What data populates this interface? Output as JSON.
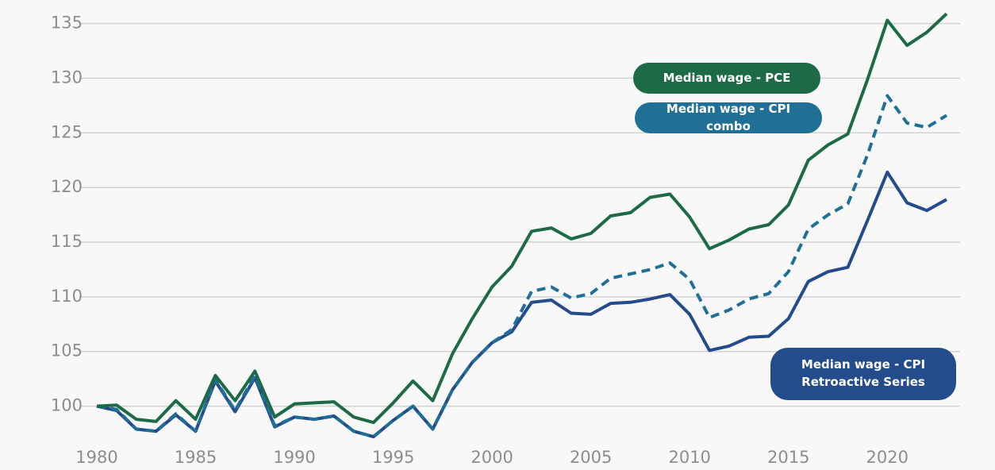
{
  "chart_data": {
    "type": "line",
    "x": [
      1980,
      1981,
      1982,
      1983,
      1984,
      1985,
      1986,
      1987,
      1988,
      1989,
      1990,
      1991,
      1992,
      1993,
      1994,
      1995,
      1996,
      1997,
      1998,
      1999,
      2000,
      2001,
      2002,
      2003,
      2004,
      2005,
      2006,
      2007,
      2008,
      2009,
      2010,
      2011,
      2012,
      2013,
      2014,
      2015,
      2016,
      2017,
      2018,
      2019,
      2020,
      2021,
      2022,
      2023
    ],
    "series": [
      {
        "name": "Median wage - PCE",
        "color": "#1d6a47",
        "dashed": false,
        "values": [
          100,
          100.1,
          98.8,
          98.6,
          100.5,
          98.8,
          102.8,
          100.5,
          103.2,
          99,
          100.2,
          100.3,
          100.4,
          99,
          98.5,
          100.3,
          102.3,
          100.5,
          104.8,
          108,
          110.9,
          112.8,
          116,
          116.3,
          115.3,
          115.8,
          117.4,
          117.7,
          119.1,
          119.4,
          117.3,
          114.4,
          115.2,
          116.2,
          116.6,
          118.4,
          122.5,
          123.9,
          124.9,
          129.9,
          135.3,
          133,
          134.2,
          135.9
        ]
      },
      {
        "name": "Median wage - CPI combo",
        "color": "#1f6f96",
        "dashed": true,
        "values": [
          100,
          99.7,
          97.9,
          97.7,
          99.3,
          97.7,
          102.4,
          99.6,
          102.8,
          98.2,
          99,
          98.8,
          99.1,
          97.7,
          97.2,
          98.7,
          100,
          97.9,
          101.5,
          104,
          105.8,
          107,
          110.5,
          110.9,
          109.9,
          110.3,
          111.7,
          112.1,
          112.5,
          113.1,
          111.6,
          108.1,
          108.8,
          109.8,
          110.3,
          112.3,
          116.2,
          117.5,
          118.5,
          123,
          128.4,
          125.9,
          125.5,
          126.6
        ]
      },
      {
        "name": "Median wage - CPI Retroactive Series",
        "color": "#244b8c",
        "dashed": false,
        "values": [
          100,
          99.6,
          97.9,
          97.7,
          99.2,
          97.7,
          102.3,
          99.5,
          102.6,
          98.1,
          99,
          98.8,
          99.1,
          97.7,
          97.2,
          98.7,
          100,
          97.9,
          101.5,
          104,
          105.8,
          106.8,
          109.5,
          109.7,
          108.5,
          108.4,
          109.4,
          109.5,
          109.8,
          110.2,
          108.4,
          105.1,
          105.5,
          106.3,
          106.4,
          108,
          111.4,
          112.3,
          112.7,
          117,
          121.4,
          118.6,
          117.9,
          118.9
        ]
      }
    ],
    "xlim": [
      1980,
      2023
    ],
    "xticks": [
      1980,
      1985,
      1990,
      1995,
      2000,
      2005,
      2010,
      2015,
      2020
    ],
    "ylim": [
      97.5,
      136.5
    ],
    "yticks": [
      100,
      105,
      110,
      115,
      120,
      125,
      130,
      135
    ],
    "grid": true
  }
}
